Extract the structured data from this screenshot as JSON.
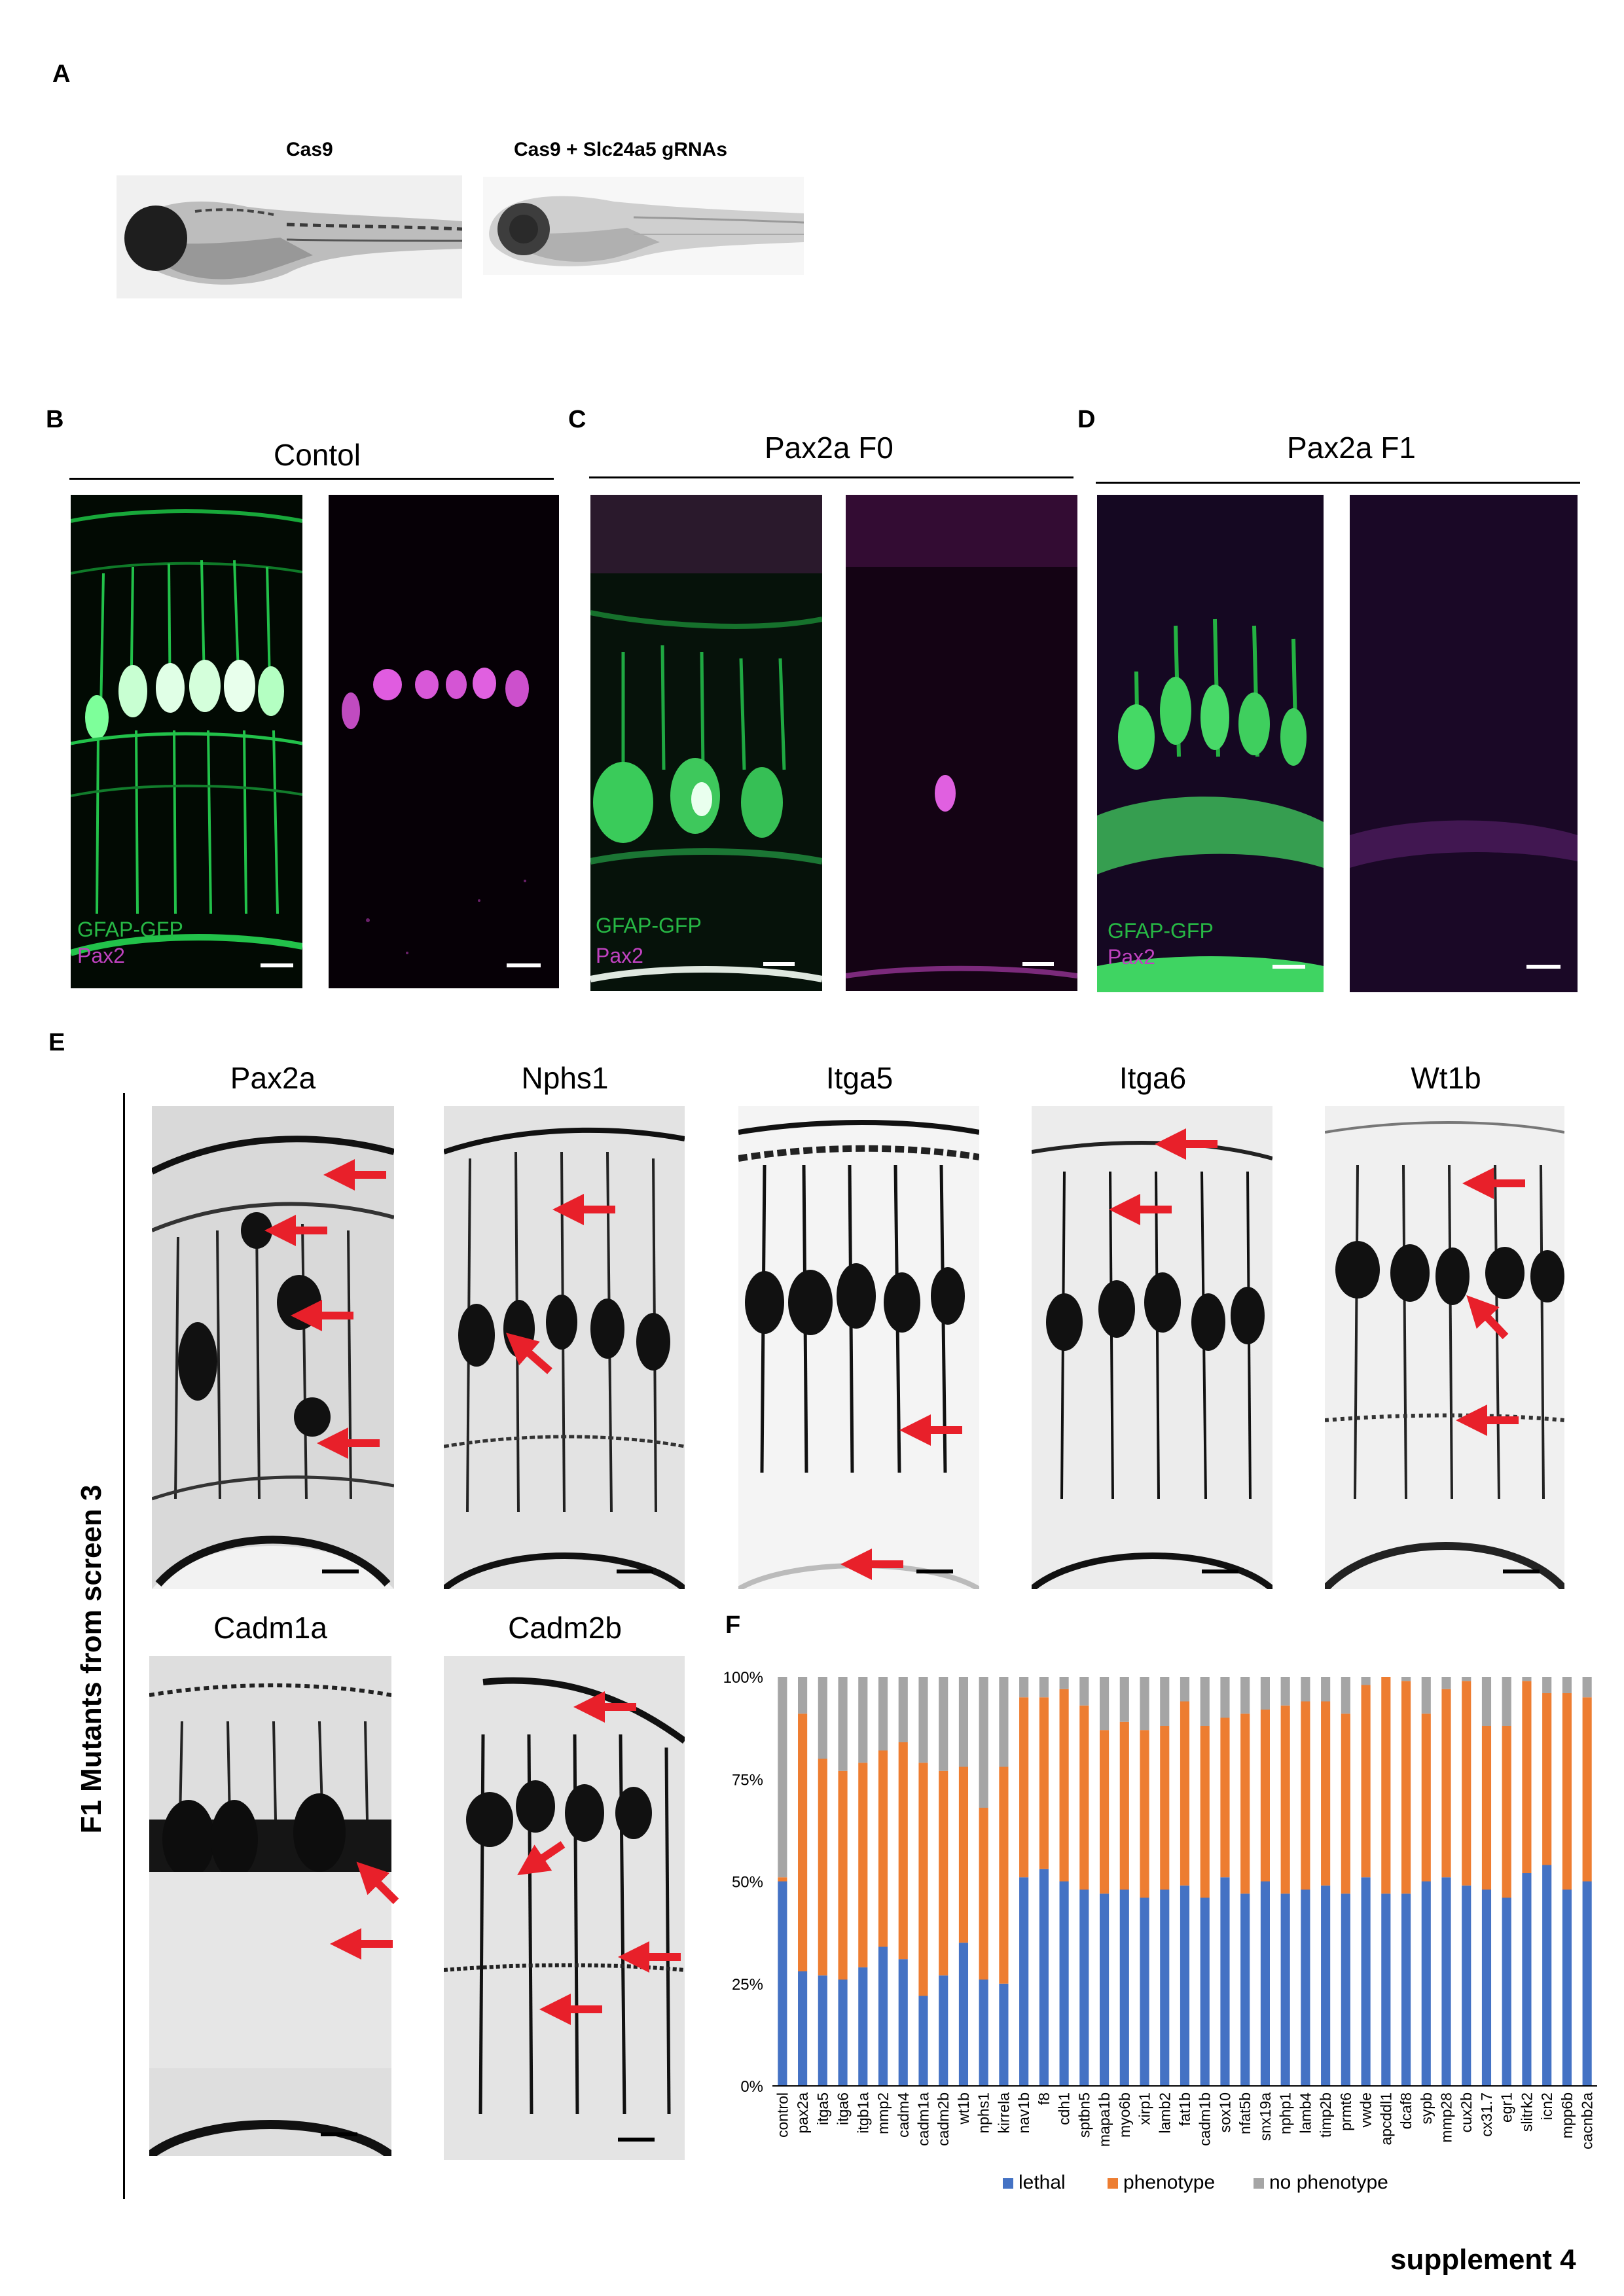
{
  "panels": {
    "A": {
      "letter": "A",
      "left_title": "Cas9",
      "right_title": "Cas9 + Slc24a5 gRNAs"
    },
    "B": {
      "letter": "B",
      "title": "Contol",
      "label_green": "GFAP-GFP",
      "label_magenta": "Pax2"
    },
    "C": {
      "letter": "C",
      "title": "Pax2a F0",
      "label_green": "GFAP-GFP",
      "label_magenta": "Pax2"
    },
    "D": {
      "letter": "D",
      "title": "Pax2a F1",
      "label_green": "GFAP-GFP",
      "label_magenta": "Pax2"
    },
    "E": {
      "letter": "E",
      "side_label": "F1 Mutants from screen 3",
      "row1": [
        "Pax2a",
        "Nphs1",
        "Itga5",
        "Itga6",
        "Wt1b"
      ],
      "row2": [
        "Cadm1a",
        "Cadm2b"
      ]
    },
    "F": {
      "letter": "F"
    }
  },
  "footer": "supplement 4",
  "chart_data": {
    "type": "bar",
    "stacked": true,
    "categories": [
      "control",
      "pax2a",
      "itga5",
      "itga6",
      "itgb1a",
      "mmp2",
      "cadm4",
      "cadm1a",
      "cadm2b",
      "wt1b",
      "nphs1",
      "kirrela",
      "nav1b",
      "f8",
      "cdh1",
      "sptbn5",
      "mapa1b",
      "myo6b",
      "xirp1",
      "lamb2",
      "fat1b",
      "cadm1b",
      "sox10",
      "nfat5b",
      "snx19a",
      "nphp1",
      "lamb4",
      "timp2b",
      "prmt6",
      "vwde",
      "apcddl1",
      "dcaf8",
      "sypb",
      "mmp28",
      "cux2b",
      "cx31.7",
      "egr1",
      "slitrk2",
      "icn2",
      "mpp6b",
      "cacnb2a"
    ],
    "series": [
      {
        "name": "lethal",
        "color": "#4472c4",
        "values": [
          50,
          28,
          27,
          26,
          29,
          34,
          31,
          22,
          27,
          35,
          26,
          25,
          51,
          53,
          50,
          48,
          47,
          48,
          46,
          48,
          49,
          46,
          51,
          47,
          50,
          47,
          48,
          49,
          47,
          51,
          47,
          47,
          50,
          51,
          49,
          48,
          46,
          52,
          54,
          48,
          50
        ]
      },
      {
        "name": "phenotype",
        "color": "#ed7d31",
        "values": [
          1,
          63,
          53,
          51,
          50,
          48,
          53,
          57,
          50,
          43,
          42,
          53,
          44,
          42,
          47,
          45,
          40,
          41,
          41,
          40,
          45,
          42,
          39,
          44,
          42,
          46,
          46,
          45,
          44,
          47,
          53,
          52,
          41,
          46,
          50,
          40,
          42,
          47,
          42,
          48,
          45
        ]
      },
      {
        "name": "no phenotype",
        "color": "#a5a5a5",
        "values": [
          49,
          9,
          20,
          23,
          21,
          18,
          16,
          21,
          23,
          22,
          32,
          22,
          5,
          5,
          3,
          7,
          13,
          11,
          13,
          12,
          6,
          12,
          10,
          9,
          8,
          7,
          6,
          6,
          9,
          2,
          0,
          1,
          9,
          3,
          1,
          12,
          12,
          1,
          4,
          4,
          5
        ]
      }
    ],
    "yticks": [
      "0%",
      "25%",
      "50%",
      "75%",
      "100%"
    ],
    "ylim": [
      0,
      100
    ],
    "legend_position": "bottom",
    "grid": false
  }
}
